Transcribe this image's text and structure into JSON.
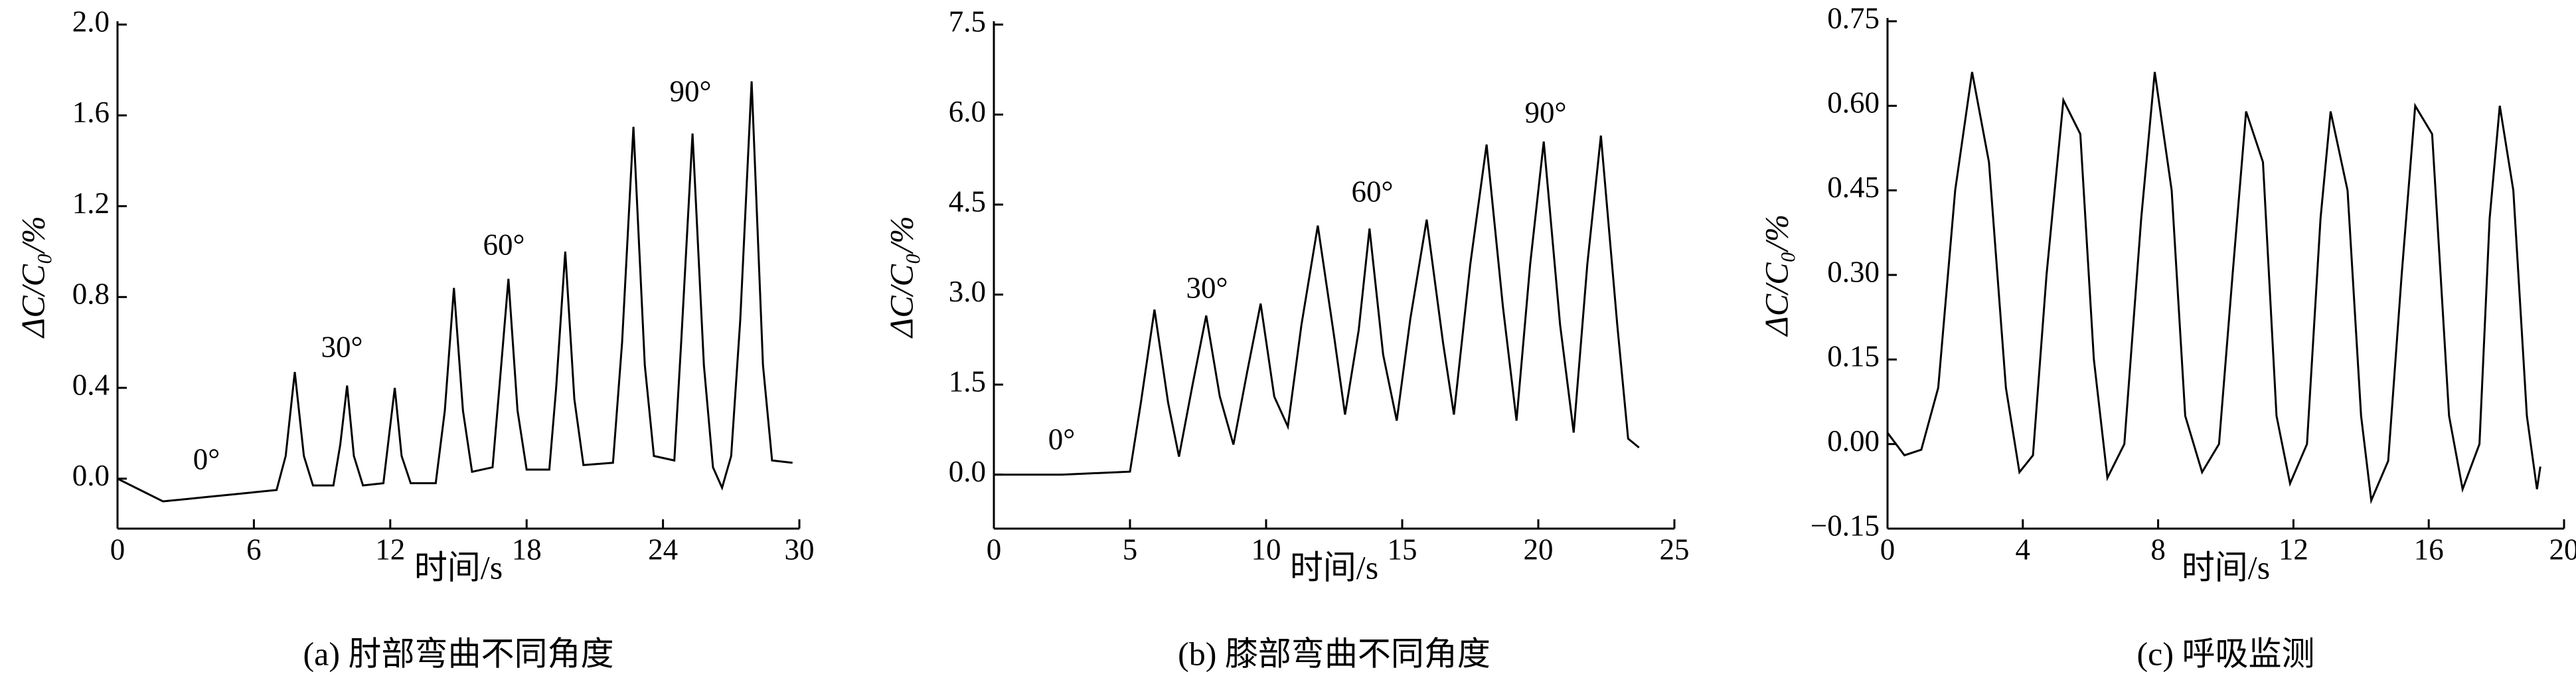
{
  "chart_data": [
    {
      "type": "line",
      "caption": "(a) 肘部弯曲不同角度",
      "x_label": "时间/s",
      "y_label": "ΔC/C₀/%",
      "annotations": [
        "0°",
        "30°",
        "60°",
        "90°"
      ],
      "xlim": [
        0,
        30
      ],
      "xticks": [
        0,
        6,
        12,
        18,
        24,
        30
      ],
      "ylim": [
        -0.22,
        2.0
      ],
      "yticks": [
        {
          "value": 0,
          "label": "0.0"
        },
        0.4,
        0.8,
        1.2,
        1.6,
        {
          "value": 2,
          "label": "2.0"
        }
      ],
      "x": [
        0,
        1,
        2,
        3,
        4,
        5,
        6,
        7,
        7.4,
        7.8,
        8.2,
        8.6,
        9.5,
        9.8,
        10.1,
        10.4,
        10.8,
        11.7,
        11.9,
        12.2,
        12.5,
        12.9,
        14.0,
        14.4,
        14.8,
        15.2,
        15.6,
        16.5,
        16.8,
        17.2,
        17.6,
        18.0,
        19.0,
        19.3,
        19.7,
        20.1,
        20.5,
        21.8,
        22.2,
        22.7,
        23.2,
        23.6,
        24.5,
        24.8,
        25.3,
        25.8,
        26.2,
        26.6,
        27.0,
        27.4,
        27.9,
        28.4,
        28.8,
        29.7
      ],
      "series": [
        {
          "color": "#000000",
          "values": [
            0,
            -0.05,
            -0.1,
            -0.09,
            -0.08,
            -0.07,
            -0.06,
            -0.05,
            0.1,
            0.47,
            0.1,
            -0.03,
            -0.03,
            0.15,
            0.41,
            0.1,
            -0.03,
            -0.02,
            0.15,
            0.4,
            0.1,
            -0.02,
            -0.02,
            0.3,
            0.84,
            0.3,
            0.03,
            0.05,
            0.4,
            0.88,
            0.3,
            0.04,
            0.04,
            0.4,
            1.0,
            0.35,
            0.06,
            0.07,
            0.6,
            1.55,
            0.5,
            0.1,
            0.08,
            0.6,
            1.52,
            0.5,
            0.05,
            -0.04,
            0.1,
            0.7,
            1.75,
            0.5,
            0.08,
            0.07
          ]
        }
      ]
    },
    {
      "type": "line",
      "caption": "(b) 膝部弯曲不同角度",
      "x_label": "时间/s",
      "y_label": "ΔC/C₀/%",
      "annotations": [
        "0°",
        "30°",
        "60°",
        "90°"
      ],
      "xlim": [
        0,
        25
      ],
      "xticks": [
        0,
        5,
        10,
        15,
        20,
        25
      ],
      "ylim": [
        -0.9,
        7.5
      ],
      "yticks": [
        {
          "value": 0,
          "label": "0.0"
        },
        1.5,
        {
          "value": 3,
          "label": "3.0"
        },
        4.5,
        {
          "value": 6,
          "label": "6.0"
        },
        7.5
      ],
      "x": [
        0,
        2.5,
        5,
        5.4,
        5.9,
        6.4,
        6.8,
        7.3,
        7.8,
        8.3,
        8.8,
        9.3,
        9.8,
        10.3,
        10.8,
        11.3,
        11.9,
        12.5,
        12.9,
        13.4,
        13.8,
        14.3,
        14.8,
        15.3,
        15.9,
        16.5,
        16.9,
        17.5,
        18.1,
        18.7,
        19.2,
        19.7,
        20.2,
        20.8,
        21.3,
        21.8,
        22.3,
        22.9,
        23.3,
        23.7
      ],
      "series": [
        {
          "color": "#000000",
          "values": [
            0,
            0,
            0.05,
            1.2,
            2.75,
            1.2,
            0.3,
            1.5,
            2.65,
            1.3,
            0.5,
            1.7,
            2.85,
            1.3,
            0.8,
            2.5,
            4.15,
            2.3,
            1.0,
            2.4,
            4.1,
            2.0,
            0.9,
            2.6,
            4.25,
            2.2,
            1.0,
            3.5,
            5.5,
            2.8,
            0.9,
            3.5,
            5.55,
            2.5,
            0.7,
            3.5,
            5.65,
            2.5,
            0.6,
            0.45
          ]
        }
      ]
    },
    {
      "type": "line",
      "caption": "(c) 呼吸监测",
      "x_label": "时间/s",
      "y_label": "ΔC/C₀/%",
      "annotations": [],
      "xlim": [
        0,
        20
      ],
      "xticks": [
        0,
        4,
        8,
        12,
        16,
        20
      ],
      "ylim": [
        -0.15,
        0.75
      ],
      "yticks": [
        {
          "value": -0.15,
          "label": "−0.15"
        },
        {
          "value": 0,
          "label": "0.00"
        },
        0.15,
        {
          "value": 0.3,
          "label": "0.30"
        },
        0.45,
        {
          "value": 0.6,
          "label": "0.60"
        },
        0.75
      ],
      "x": [
        0,
        0.5,
        1.0,
        1.5,
        2.0,
        2.5,
        3.0,
        3.5,
        3.9,
        4.3,
        4.7,
        5.2,
        5.7,
        6.1,
        6.5,
        7.0,
        7.5,
        7.9,
        8.4,
        8.8,
        9.3,
        9.8,
        10.2,
        10.6,
        11.1,
        11.5,
        11.9,
        12.4,
        12.8,
        13.1,
        13.6,
        14.0,
        14.3,
        14.8,
        15.2,
        15.6,
        16.1,
        16.6,
        17.0,
        17.5,
        17.8,
        18.1,
        18.5,
        18.9,
        19.2,
        19.3
      ],
      "series": [
        {
          "color": "#000000",
          "values": [
            0.02,
            -0.02,
            -0.01,
            0.1,
            0.45,
            0.66,
            0.5,
            0.1,
            -0.05,
            -0.02,
            0.3,
            0.61,
            0.55,
            0.15,
            -0.06,
            0.0,
            0.4,
            0.66,
            0.45,
            0.05,
            -0.05,
            0.0,
            0.3,
            0.59,
            0.5,
            0.05,
            -0.07,
            0.0,
            0.4,
            0.59,
            0.45,
            0.05,
            -0.1,
            -0.03,
            0.3,
            0.6,
            0.55,
            0.05,
            -0.08,
            0.0,
            0.4,
            0.6,
            0.45,
            0.05,
            -0.08,
            -0.04
          ]
        }
      ]
    }
  ]
}
